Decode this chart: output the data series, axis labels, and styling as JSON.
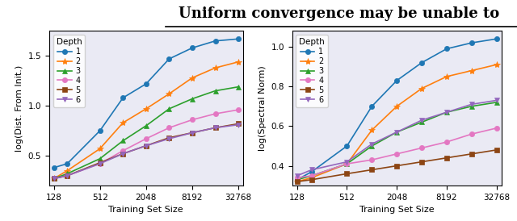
{
  "title": "Uniform convergence may be unable to",
  "x_ticks": [
    128,
    512,
    2048,
    8192,
    32768
  ],
  "x_label": "Training Set Size",
  "plot1": {
    "ylabel": "log(Dist. From Init.)",
    "ylim": [
      0.2,
      1.75
    ],
    "yticks": [
      0.5,
      1.0,
      1.5
    ],
    "series": [
      {
        "label": "1",
        "color": "#1f77b4",
        "marker": "o",
        "y": [
          0.38,
          0.42,
          0.75,
          1.08,
          1.22,
          1.47,
          1.58,
          1.65,
          1.67
        ]
      },
      {
        "label": "2",
        "color": "#ff7f0e",
        "marker": "*",
        "y": [
          0.27,
          0.35,
          0.57,
          0.83,
          0.97,
          1.12,
          1.28,
          1.38,
          1.44
        ]
      },
      {
        "label": "3",
        "color": "#2ca02c",
        "marker": "^",
        "y": [
          0.27,
          0.32,
          0.47,
          0.65,
          0.8,
          0.97,
          1.07,
          1.15,
          1.19
        ]
      },
      {
        "label": "4",
        "color": "#e377c2",
        "marker": "o",
        "y": [
          0.27,
          0.3,
          0.42,
          0.55,
          0.67,
          0.78,
          0.86,
          0.92,
          0.96
        ]
      },
      {
        "label": "5",
        "color": "#8c4513",
        "marker": "s",
        "y": [
          0.27,
          0.3,
          0.43,
          0.52,
          0.6,
          0.68,
          0.73,
          0.78,
          0.82
        ]
      },
      {
        "label": "6",
        "color": "#9467bd",
        "marker": "v",
        "y": [
          0.27,
          0.3,
          0.42,
          0.52,
          0.6,
          0.67,
          0.73,
          0.78,
          0.81
        ]
      }
    ]
  },
  "plot2": {
    "ylabel": "log(Spectral Norm)",
    "ylim": [
      0.3,
      1.08
    ],
    "yticks": [
      0.4,
      0.6,
      0.8,
      1.0
    ],
    "series": [
      {
        "label": "1",
        "color": "#1f77b4",
        "marker": "o",
        "y": [
          0.33,
          0.37,
          0.5,
          0.7,
          0.83,
          0.92,
          0.99,
          1.02,
          1.04
        ]
      },
      {
        "label": "2",
        "color": "#ff7f0e",
        "marker": "*",
        "y": [
          0.32,
          0.34,
          0.41,
          0.58,
          0.7,
          0.79,
          0.85,
          0.88,
          0.91
        ]
      },
      {
        "label": "3",
        "color": "#2ca02c",
        "marker": "^",
        "y": [
          0.33,
          0.35,
          0.41,
          0.5,
          0.57,
          0.62,
          0.67,
          0.7,
          0.72
        ]
      },
      {
        "label": "4",
        "color": "#e377c2",
        "marker": "o",
        "y": [
          0.34,
          0.35,
          0.41,
          0.43,
          0.46,
          0.49,
          0.52,
          0.56,
          0.59
        ]
      },
      {
        "label": "5",
        "color": "#8c4513",
        "marker": "s",
        "y": [
          0.32,
          0.33,
          0.36,
          0.38,
          0.4,
          0.42,
          0.44,
          0.46,
          0.48
        ]
      },
      {
        "label": "6",
        "color": "#9467bd",
        "marker": "v",
        "y": [
          0.35,
          0.38,
          0.42,
          0.51,
          0.57,
          0.63,
          0.67,
          0.71,
          0.73
        ]
      }
    ]
  },
  "x_values": [
    128,
    192,
    512,
    1024,
    2048,
    4096,
    8192,
    16384,
    32768
  ],
  "legend_loc": "upper left",
  "background_color": "#eaeaf4",
  "title_fontsize": 13,
  "axis_fontsize": 8,
  "tick_fontsize": 7.5
}
